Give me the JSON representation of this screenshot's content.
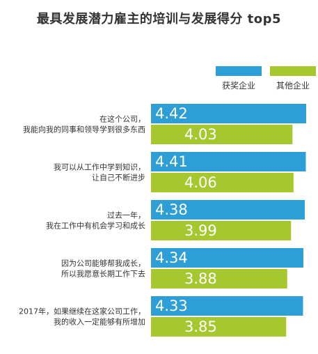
{
  "chart_data": {
    "type": "bar",
    "orientation": "horizontal",
    "title": "最具发展潜力雇主的培训与发展得分 top5",
    "categories": [
      [
        "在这个公司，",
        "我能向我的同事和领导学到很多东西"
      ],
      [
        "我可以从工作中学到知识，",
        "让自己不断进步"
      ],
      [
        "过去一年，",
        "我在工作中有机会学习和成长"
      ],
      [
        "因为公司能够帮我成长，",
        "所以我愿意长期工作下去"
      ],
      [
        "2017年，如果继续在这家公司工作，",
        "我的收入一定能够有所增加"
      ]
    ],
    "series": [
      {
        "name": "获奖企业",
        "color": "#2e9fd6",
        "values": [
          4.42,
          4.41,
          4.38,
          4.34,
          4.33
        ]
      },
      {
        "name": "其他企业",
        "color": "#a6c72e",
        "values": [
          4.03,
          4.06,
          3.99,
          3.88,
          3.85
        ]
      }
    ],
    "value_labels": true,
    "legend_position": "top-right",
    "grid": false
  }
}
